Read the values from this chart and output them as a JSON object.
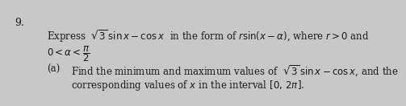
{
  "question_number": "9.",
  "line1": "Express  $\\sqrt{3}\\,\\sin x - \\cos x$  in the form of $r\\sin(x - \\alpha)$, where $r > 0$ and",
  "line2": "$0 < \\alpha < \\dfrac{\\pi}{2}$",
  "line3_label": "(a)",
  "line3_text": "Find the minimum and maximum values of  $\\sqrt{3}\\,\\sin x - \\cos x$, and the",
  "line4": "corresponding values of $x$ in the interval $[0,\\,2\\pi]$.",
  "bg_color": "#c8c8c8",
  "text_color": "#1a1a1a",
  "fontsize": 8.5
}
